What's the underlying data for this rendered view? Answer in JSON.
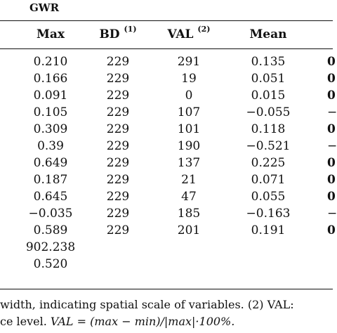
{
  "section_title": "GWR",
  "headers": {
    "max": "Max",
    "bd": "BD",
    "bd_note": "(1)",
    "val": "VAL",
    "val_note": "(2)",
    "mean": "Mean"
  },
  "rows": [
    {
      "max": "0.210",
      "bd": "229",
      "val": "291",
      "mean": "0.135",
      "cut": "0"
    },
    {
      "max": "0.166",
      "bd": "229",
      "val": "19",
      "mean": "0.051",
      "cut": "0"
    },
    {
      "max": "0.091",
      "bd": "229",
      "val": "0",
      "mean": "0.015",
      "cut": "0"
    },
    {
      "max": "0.105",
      "bd": "229",
      "val": "107",
      "mean": "−0.055",
      "cut": "−"
    },
    {
      "max": "0.309",
      "bd": "229",
      "val": "101",
      "mean": "0.118",
      "cut": "0"
    },
    {
      "max": "0.39",
      "bd": "229",
      "val": "190",
      "mean": "−0.521",
      "cut": "−"
    },
    {
      "max": "0.649",
      "bd": "229",
      "val": "137",
      "mean": "0.225",
      "cut": "0"
    },
    {
      "max": "0.187",
      "bd": "229",
      "val": "21",
      "mean": "0.071",
      "cut": "0"
    },
    {
      "max": "0.645",
      "bd": "229",
      "val": "47",
      "mean": "0.055",
      "cut": "0"
    },
    {
      "max": "−0.035",
      "bd": "229",
      "val": "185",
      "mean": "−0.163",
      "cut": "−"
    },
    {
      "max": "0.589",
      "bd": "229",
      "val": "201",
      "mean": "0.191",
      "cut": "0"
    }
  ],
  "extra_rows": [
    {
      "max": "902.238"
    },
    {
      "max": "0.520"
    }
  ],
  "footnote": {
    "line1": "width, indicating spatial scale of variables. (2) VAL:",
    "line2_text": "ce level. ",
    "line2_formula": "VAL = (max − min)/|max|·100%."
  }
}
